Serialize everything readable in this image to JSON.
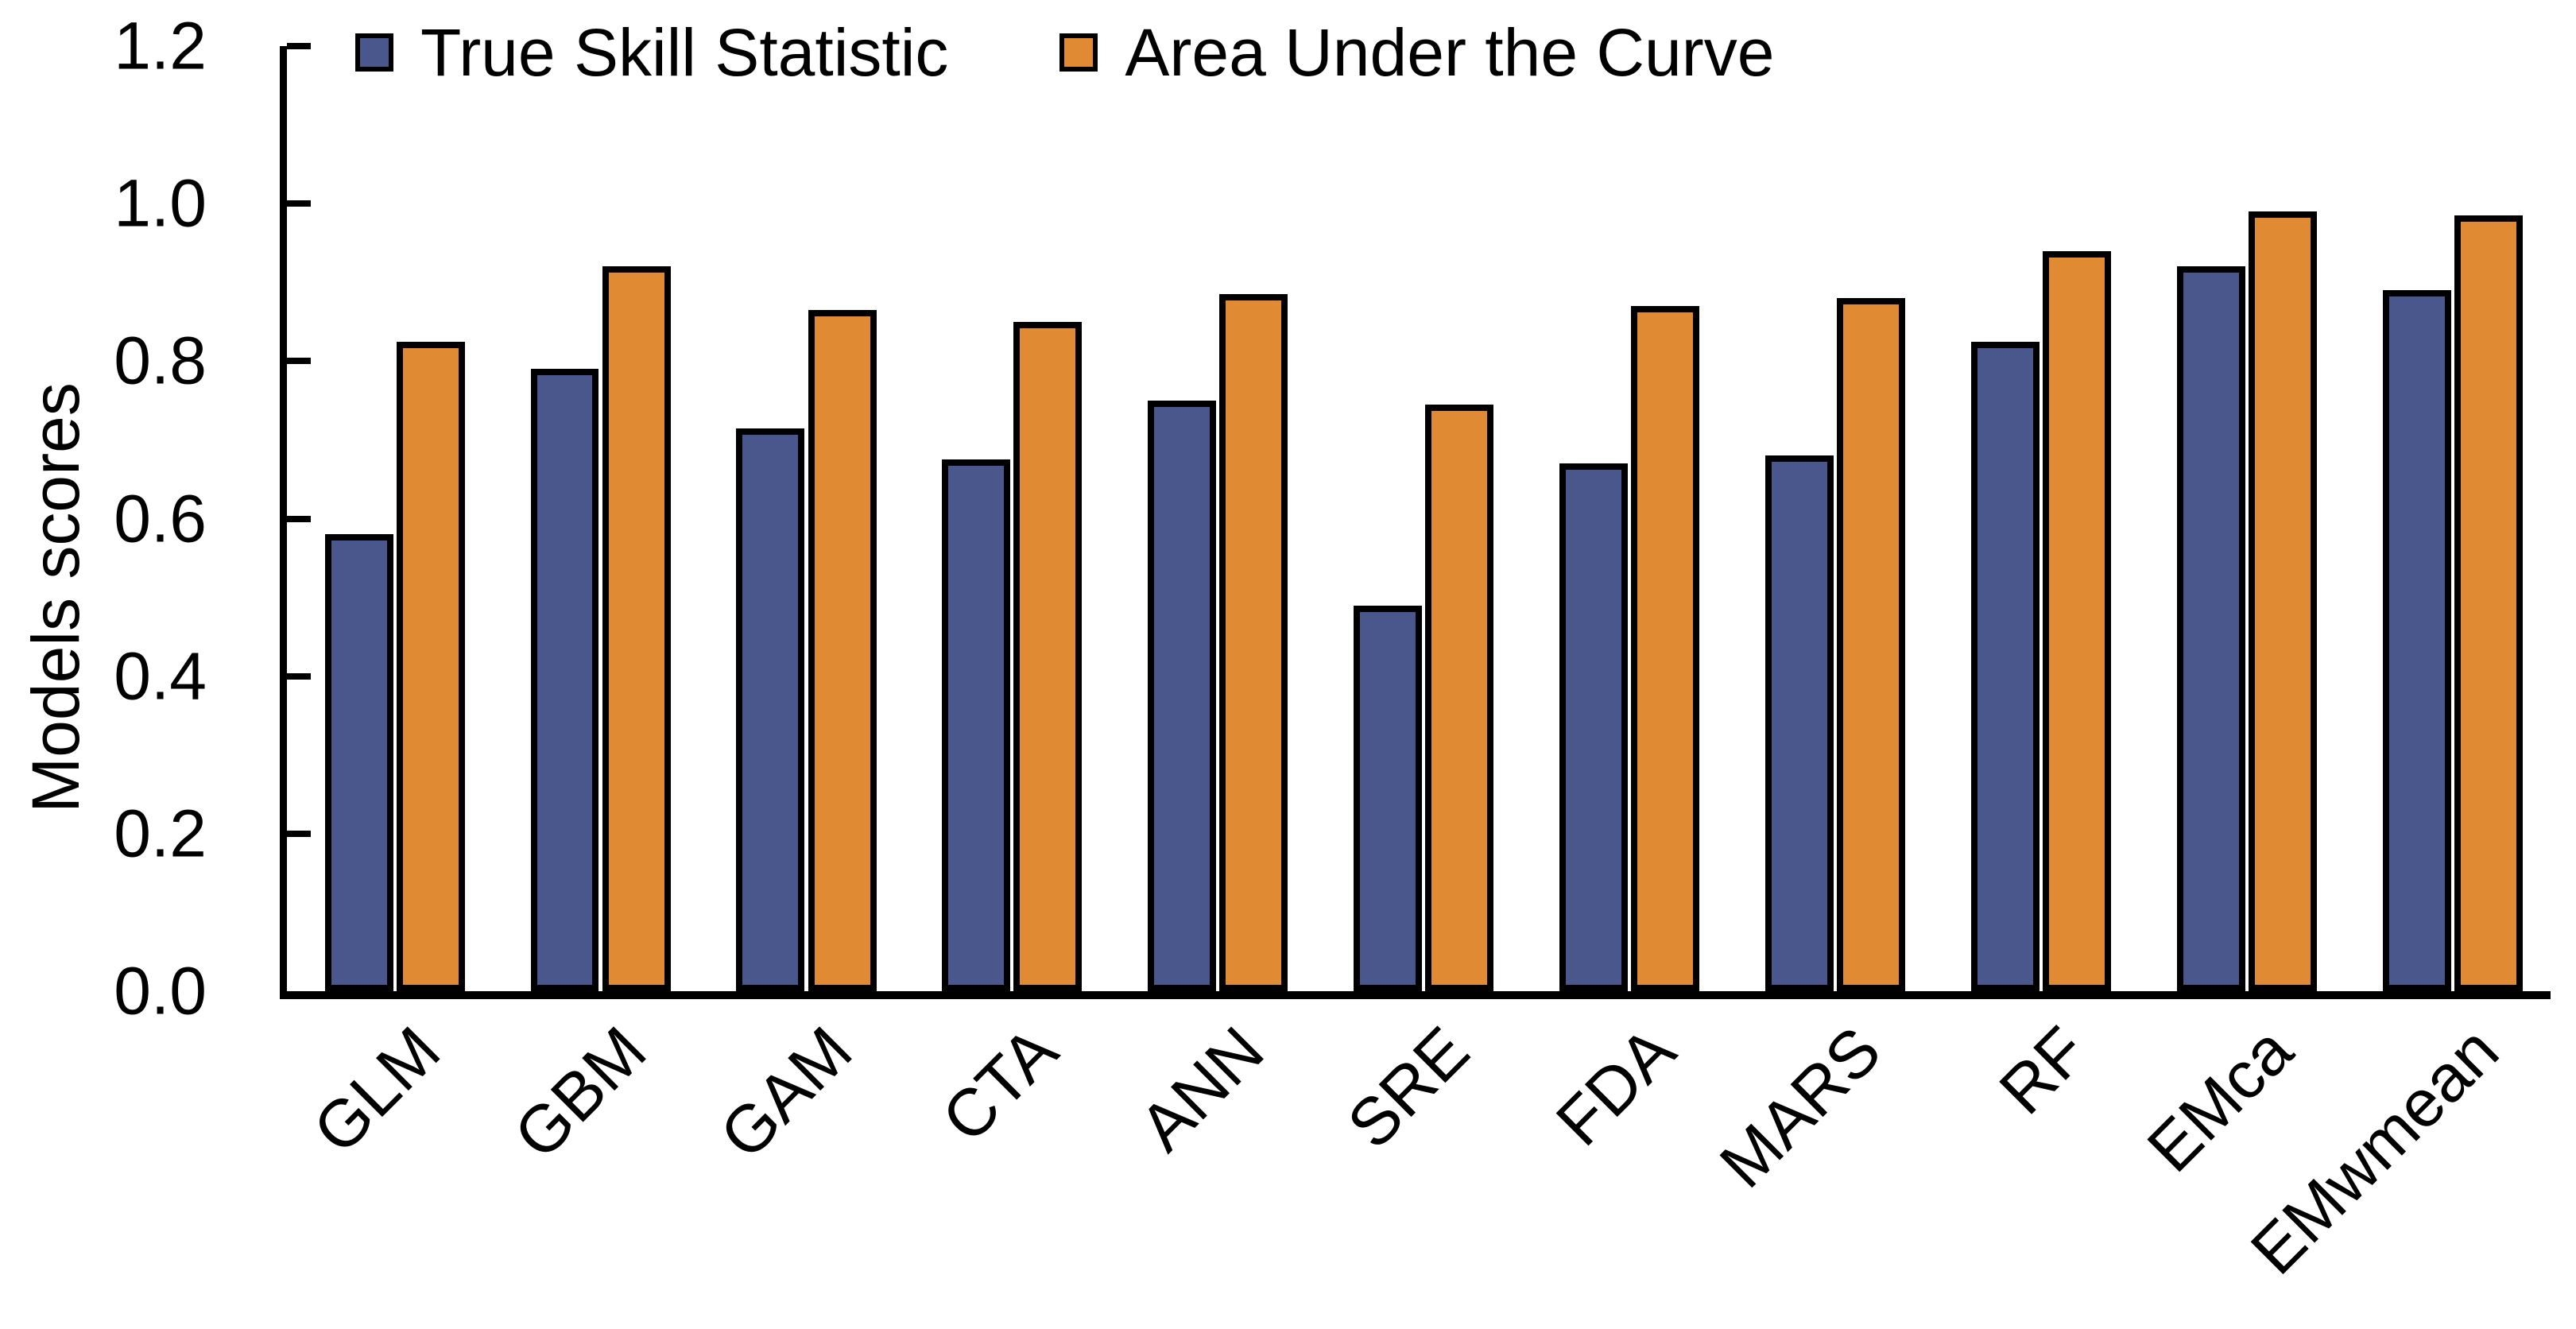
{
  "chart_data": {
    "type": "bar",
    "title": "",
    "xlabel": "",
    "ylabel": "Models scores",
    "ylim": [
      0,
      1.2
    ],
    "ytick_step": 0.2,
    "yticks": [
      "0.0",
      "0.2",
      "0.4",
      "0.6",
      "0.8",
      "1.0",
      "1.2"
    ],
    "grid": false,
    "legend_position": "top",
    "axis_color": "#000000",
    "bar_border_color": "#000000",
    "categories": [
      "GLM",
      "GBM",
      "GAM",
      "CTA",
      "ANN",
      "SRE",
      "FDA",
      "MARS",
      "RF",
      "EMca",
      "EMwmean"
    ],
    "series": [
      {
        "name": "True Skill Statistic",
        "short": "tss",
        "color": "#4a578c",
        "values": [
          0.58,
          0.79,
          0.715,
          0.675,
          0.75,
          0.49,
          0.67,
          0.68,
          0.825,
          0.92,
          0.89
        ]
      },
      {
        "name": "Area Under the Curve",
        "short": "auc",
        "color": "#e08a33",
        "values": [
          0.825,
          0.92,
          0.865,
          0.85,
          0.885,
          0.745,
          0.87,
          0.88,
          0.94,
          0.99,
          0.985
        ]
      }
    ]
  }
}
